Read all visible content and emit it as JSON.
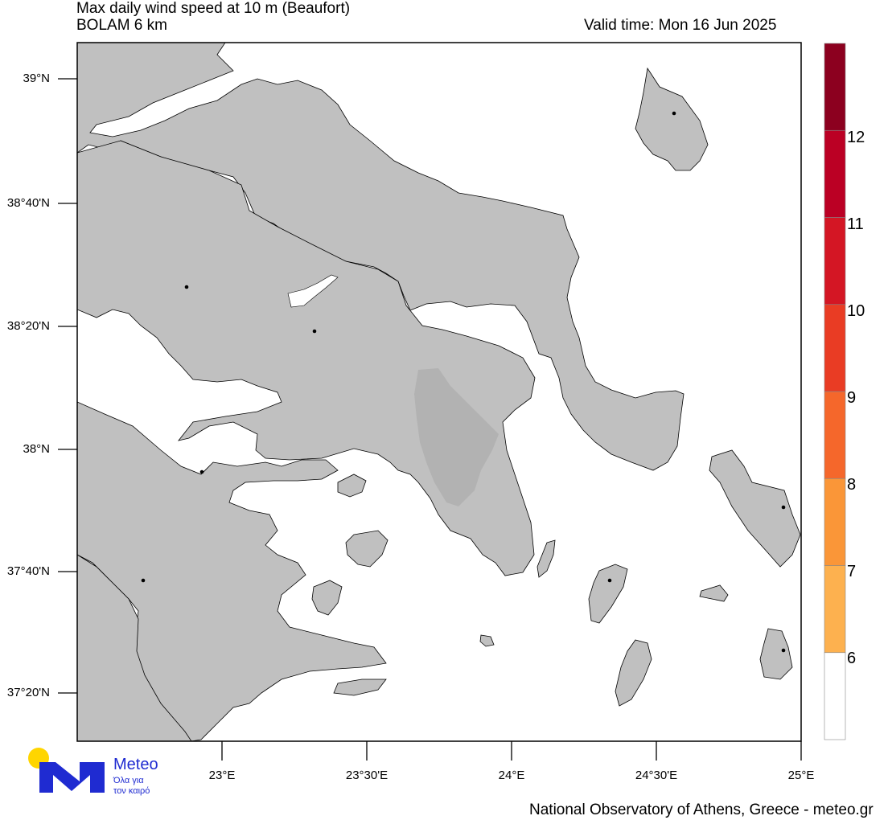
{
  "header": {
    "title": "Max daily wind speed at 10 m (Beaufort)",
    "model": "BOLAM 6 km",
    "valid_time": "Valid time: Mon 16 Jun 2025"
  },
  "map": {
    "lat_labels": [
      "39°N",
      "38°40'N",
      "38°20'N",
      "38°N",
      "37°40'N",
      "37°20'N"
    ],
    "lon_labels": [
      "23°E",
      "23°30'E",
      "24°E",
      "24°30'E",
      "25°E"
    ],
    "land_color": "#c0c0c0",
    "mountain_color": "#b2b2b2",
    "sea_color": "#ffffff",
    "wind_field": "all values below 6 Beaufort (white)"
  },
  "colorbar": {
    "labels": [
      "6",
      "7",
      "8",
      "9",
      "10",
      "11",
      "12"
    ],
    "colors": [
      "#ffffff",
      "#fdb14f",
      "#fa9638",
      "#f5672b",
      "#e93c24",
      "#d41624",
      "#bb0024",
      "#8c001f"
    ]
  },
  "logo": {
    "name": "Meteo",
    "tagline_1": "Όλα για",
    "tagline_2": "τον καιρό",
    "sun_color": "#ffd500",
    "brand_color": "#1f2bd1"
  },
  "footer": {
    "credit": "National Observatory of Athens, Greece - meteo.gr"
  }
}
